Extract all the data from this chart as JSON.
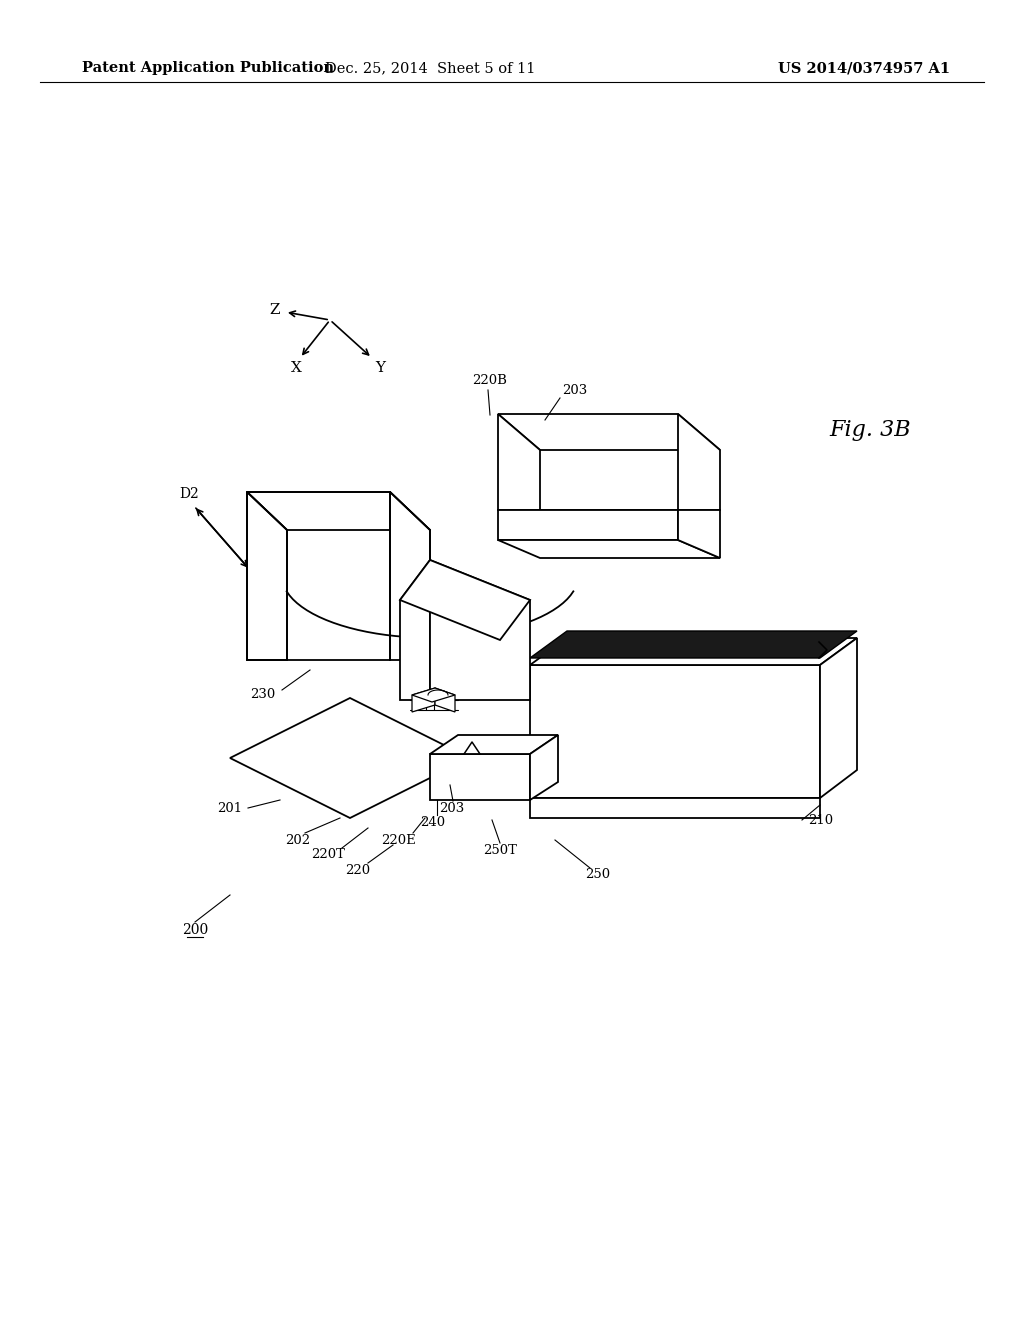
{
  "bg_color": "#ffffff",
  "header_left": "Patent Application Publication",
  "header_mid": "Dec. 25, 2014  Sheet 5 of 11",
  "header_right": "US 2014/0374957 A1",
  "fig_label": "Fig. 3B",
  "fontsize_header": 10.5,
  "fontsize_label": 9.5,
  "fontsize_fig": 16
}
